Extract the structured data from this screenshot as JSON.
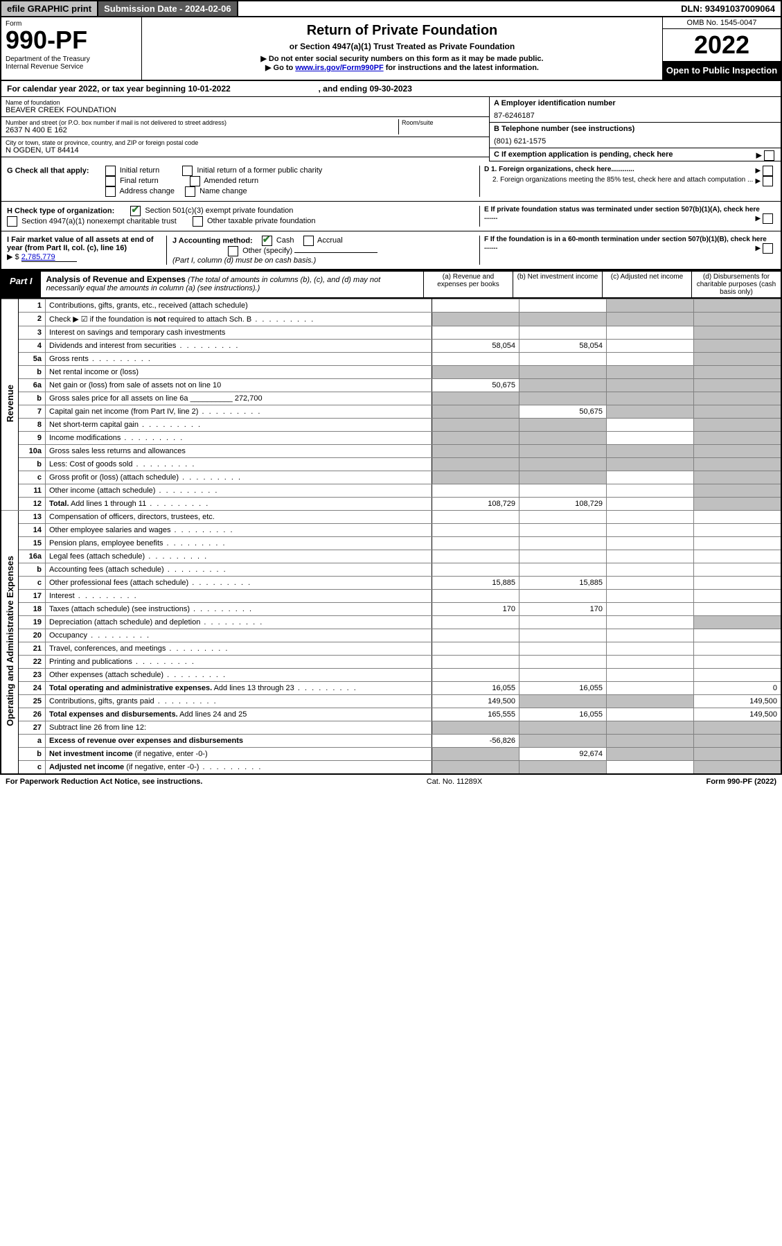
{
  "top": {
    "efile": "efile GRAPHIC print",
    "submission": "Submission Date - 2024-02-06",
    "dln": "DLN: 93491037009064"
  },
  "header": {
    "form_word": "Form",
    "form_no": "990-PF",
    "dept": "Department of the Treasury",
    "irs": "Internal Revenue Service",
    "title": "Return of Private Foundation",
    "subtitle": "or Section 4947(a)(1) Trust Treated as Private Foundation",
    "note1": "▶ Do not enter social security numbers on this form as it may be made public.",
    "note2_pre": "▶ Go to ",
    "note2_link": "www.irs.gov/Form990PF",
    "note2_post": " for instructions and the latest information.",
    "omb": "OMB No. 1545-0047",
    "year": "2022",
    "open": "Open to Public Inspection"
  },
  "cal": {
    "text_a": "For calendar year 2022, or tax year beginning 10-01-2022",
    "text_b": ", and ending 09-30-2023"
  },
  "info": {
    "name_label": "Name of foundation",
    "name": "BEAVER CREEK FOUNDATION",
    "addr_label": "Number and street (or P.O. box number if mail is not delivered to street address)",
    "addr": "2637 N 400 E 162",
    "room_label": "Room/suite",
    "city_label": "City or town, state or province, country, and ZIP or foreign postal code",
    "city": "N OGDEN, UT  84414",
    "a_label": "A Employer identification number",
    "a_val": "87-6246187",
    "b_label": "B Telephone number (see instructions)",
    "b_val": "(801) 621-1575",
    "c_label": "C If exemption application is pending, check here"
  },
  "g": {
    "label": "G Check all that apply:",
    "initial": "Initial return",
    "final": "Final return",
    "address": "Address change",
    "initial_former": "Initial return of a former public charity",
    "amended": "Amended return",
    "name_change": "Name change",
    "d1": "D 1. Foreign organizations, check here............",
    "d2": "2. Foreign organizations meeting the 85% test, check here and attach computation ...",
    "e": "E  If private foundation status was terminated under section 507(b)(1)(A), check here .......",
    "h_label": "H Check type of organization:",
    "h1": "Section 501(c)(3) exempt private foundation",
    "h2": "Section 4947(a)(1) nonexempt charitable trust",
    "h3": "Other taxable private foundation",
    "i_label": "I Fair market value of all assets at end of year (from Part II, col. (c), line 16)",
    "i_val": "2,785,779",
    "j_label": "J Accounting method:",
    "j_cash": "Cash",
    "j_accrual": "Accrual",
    "j_other": "Other (specify)",
    "j_note": "(Part I, column (d) must be on cash basis.)",
    "f": "F  If the foundation is in a 60-month termination under section 507(b)(1)(B), check here ......."
  },
  "part1": {
    "label": "Part I",
    "title": "Analysis of Revenue and Expenses",
    "title_note": " (The total of amounts in columns (b), (c), and (d) may not necessarily equal the amounts in column (a) (see instructions).)",
    "col_a": "(a)   Revenue and expenses per books",
    "col_b": "(b)   Net investment income",
    "col_c": "(c)   Adjusted net income",
    "col_d": "(d)   Disbursements for charitable purposes (cash basis only)"
  },
  "sections": {
    "revenue": "Revenue",
    "operating": "Operating and Administrative Expenses"
  },
  "rows": [
    {
      "n": "1",
      "d": "Contributions, gifts, grants, etc., received (attach schedule)",
      "a": "",
      "b": "",
      "c": "g",
      "dd": "g"
    },
    {
      "n": "2",
      "d": "Check ▶ ☑ if the foundation is <b>not</b> required to attach Sch. B",
      "dots": true,
      "a": "g",
      "b": "g",
      "c": "g",
      "dd": "g"
    },
    {
      "n": "3",
      "d": "Interest on savings and temporary cash investments",
      "a": "",
      "b": "",
      "c": "",
      "dd": "g"
    },
    {
      "n": "4",
      "d": "Dividends and interest from securities",
      "dots": true,
      "a": "58,054",
      "b": "58,054",
      "c": "",
      "dd": "g"
    },
    {
      "n": "5a",
      "d": "Gross rents",
      "dots": true,
      "a": "",
      "b": "",
      "c": "",
      "dd": "g"
    },
    {
      "n": "b",
      "d": "Net rental income or (loss)  ",
      "a": "g",
      "b": "g",
      "c": "g",
      "dd": "g"
    },
    {
      "n": "6a",
      "d": "Net gain or (loss) from sale of assets not on line 10",
      "a": "50,675",
      "b": "g",
      "c": "g",
      "dd": "g"
    },
    {
      "n": "b",
      "d": "Gross sales price for all assets on line 6a __________ 272,700",
      "a": "g",
      "b": "g",
      "c": "g",
      "dd": "g"
    },
    {
      "n": "7",
      "d": "Capital gain net income (from Part IV, line 2)",
      "dots": true,
      "a": "g",
      "b": "50,675",
      "c": "g",
      "dd": "g"
    },
    {
      "n": "8",
      "d": "Net short-term capital gain",
      "dots": true,
      "a": "g",
      "b": "g",
      "c": "",
      "dd": "g"
    },
    {
      "n": "9",
      "d": "Income modifications",
      "dots": true,
      "a": "g",
      "b": "g",
      "c": "",
      "dd": "g"
    },
    {
      "n": "10a",
      "d": "Gross sales less returns and allowances",
      "a": "g",
      "b": "g",
      "c": "g",
      "dd": "g"
    },
    {
      "n": "b",
      "d": "Less: Cost of goods sold",
      "dots": true,
      "a": "g",
      "b": "g",
      "c": "g",
      "dd": "g"
    },
    {
      "n": "c",
      "d": "Gross profit or (loss) (attach schedule)",
      "dots": true,
      "a": "g",
      "b": "g",
      "c": "",
      "dd": "g"
    },
    {
      "n": "11",
      "d": "Other income (attach schedule)",
      "dots": true,
      "a": "",
      "b": "",
      "c": "",
      "dd": "g"
    },
    {
      "n": "12",
      "d": "<b>Total.</b> Add lines 1 through 11",
      "dots": true,
      "a": "108,729",
      "b": "108,729",
      "c": "",
      "dd": "g"
    },
    {
      "n": "13",
      "d": "Compensation of officers, directors, trustees, etc.",
      "a": "",
      "b": "",
      "c": "",
      "dd": ""
    },
    {
      "n": "14",
      "d": "Other employee salaries and wages",
      "dots": true,
      "a": "",
      "b": "",
      "c": "",
      "dd": ""
    },
    {
      "n": "15",
      "d": "Pension plans, employee benefits",
      "dots": true,
      "a": "",
      "b": "",
      "c": "",
      "dd": ""
    },
    {
      "n": "16a",
      "d": "Legal fees (attach schedule)",
      "dots": true,
      "a": "",
      "b": "",
      "c": "",
      "dd": ""
    },
    {
      "n": "b",
      "d": "Accounting fees (attach schedule)",
      "dots": true,
      "a": "",
      "b": "",
      "c": "",
      "dd": ""
    },
    {
      "n": "c",
      "d": "Other professional fees (attach schedule)",
      "dots": true,
      "a": "15,885",
      "b": "15,885",
      "c": "",
      "dd": ""
    },
    {
      "n": "17",
      "d": "Interest",
      "dots": true,
      "a": "",
      "b": "",
      "c": "",
      "dd": ""
    },
    {
      "n": "18",
      "d": "Taxes (attach schedule) (see instructions)",
      "dots": true,
      "a": "170",
      "b": "170",
      "c": "",
      "dd": ""
    },
    {
      "n": "19",
      "d": "Depreciation (attach schedule) and depletion",
      "dots": true,
      "a": "",
      "b": "",
      "c": "",
      "dd": "g"
    },
    {
      "n": "20",
      "d": "Occupancy",
      "dots": true,
      "a": "",
      "b": "",
      "c": "",
      "dd": ""
    },
    {
      "n": "21",
      "d": "Travel, conferences, and meetings",
      "dots": true,
      "a": "",
      "b": "",
      "c": "",
      "dd": ""
    },
    {
      "n": "22",
      "d": "Printing and publications",
      "dots": true,
      "a": "",
      "b": "",
      "c": "",
      "dd": ""
    },
    {
      "n": "23",
      "d": "Other expenses (attach schedule)",
      "dots": true,
      "a": "",
      "b": "",
      "c": "",
      "dd": ""
    },
    {
      "n": "24",
      "d": "<b>Total operating and administrative expenses.</b> Add lines 13 through 23",
      "dots": true,
      "a": "16,055",
      "b": "16,055",
      "c": "",
      "dd": "0"
    },
    {
      "n": "25",
      "d": "Contributions, gifts, grants paid",
      "dots": true,
      "a": "149,500",
      "b": "g",
      "c": "g",
      "dd": "149,500"
    },
    {
      "n": "26",
      "d": "<b>Total expenses and disbursements.</b> Add lines 24 and 25",
      "a": "165,555",
      "b": "16,055",
      "c": "",
      "dd": "149,500"
    },
    {
      "n": "27",
      "d": "Subtract line 26 from line 12:",
      "a": "g",
      "b": "g",
      "c": "g",
      "dd": "g"
    },
    {
      "n": "a",
      "d": "<b>Excess of revenue over expenses and disbursements</b>",
      "a": "-56,826",
      "b": "g",
      "c": "g",
      "dd": "g"
    },
    {
      "n": "b",
      "d": "<b>Net investment income</b> (if negative, enter -0-)",
      "a": "g",
      "b": "92,674",
      "c": "g",
      "dd": "g"
    },
    {
      "n": "c",
      "d": "<b>Adjusted net income</b> (if negative, enter -0-)",
      "dots": true,
      "a": "g",
      "b": "g",
      "c": "",
      "dd": "g"
    }
  ],
  "footer": {
    "left": "For Paperwork Reduction Act Notice, see instructions.",
    "mid": "Cat. No. 11289X",
    "right": "Form 990-PF (2022)"
  },
  "colors": {
    "grey_header": "#c0c0c0",
    "dark_header": "#5a5a5a",
    "link": "#0000cc",
    "check_green": "#2e7d32",
    "cell_grey": "#c0c0c0"
  }
}
